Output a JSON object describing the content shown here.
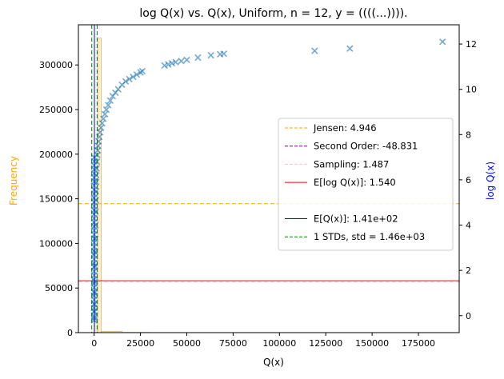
{
  "chart_data": {
    "type": "scatter",
    "title": "log Q(x) vs. Q(x), Uniform, n = 12, y = ((((...)))).",
    "xlabel": "Q(x)",
    "ylabel_left": "Frequency",
    "ylabel_right": "log Q(x)",
    "colors": {
      "frequency": "#ffa500",
      "logq": "#0000ff",
      "scatter": "#1f77b4",
      "jensen": "#ffa500",
      "second_order": "#800080",
      "sampling": "#ffc0cb",
      "e_log_q": "#ff0000",
      "e_q": "#0000ff",
      "std": "#008000"
    },
    "xlim": [
      -8500,
      197000
    ],
    "ylim_left": [
      0,
      345000
    ],
    "ylim_right": [
      -0.75,
      12.85
    ],
    "x_ticks": [
      0,
      25000,
      50000,
      75000,
      100000,
      125000,
      150000,
      175000
    ],
    "x_tick_labels": [
      "0",
      "25000",
      "50000",
      "75000",
      "100000",
      "125000",
      "150000",
      "175000"
    ],
    "y_left_ticks": [
      0,
      50000,
      100000,
      150000,
      200000,
      250000,
      300000
    ],
    "y_left_tick_labels": [
      "0",
      "50000",
      "100000",
      "150000",
      "200000",
      "250000",
      "300000"
    ],
    "y_right_ticks": [
      0,
      2,
      4,
      6,
      8,
      10,
      12
    ],
    "y_right_tick_labels": [
      "0",
      "2",
      "4",
      "6",
      "8",
      "10",
      "12"
    ],
    "histogram": [
      {
        "x0": 0,
        "x1": 1900,
        "count": 12000
      },
      {
        "x0": 1900,
        "x1": 3800,
        "count": 330000
      },
      {
        "x0": 3800,
        "x1": 15000,
        "count": 1500
      },
      {
        "x0": 15000,
        "x1": 30000,
        "count": 300
      }
    ],
    "scatter_points": [
      [
        0,
        -0.1
      ],
      [
        60,
        0.2
      ],
      [
        120,
        0.5
      ],
      [
        200,
        1.0
      ],
      [
        300,
        1.5
      ],
      [
        400,
        2.2
      ],
      [
        500,
        2.8
      ],
      [
        600,
        3.4
      ],
      [
        700,
        4.0
      ],
      [
        800,
        4.6
      ],
      [
        900,
        5.1
      ],
      [
        1000,
        5.5
      ],
      [
        1100,
        5.9
      ],
      [
        1200,
        6.2
      ],
      [
        1350,
        6.5
      ],
      [
        1500,
        6.8
      ],
      [
        1700,
        7.1
      ],
      [
        1900,
        7.3
      ],
      [
        2100,
        7.5
      ],
      [
        2400,
        7.7
      ],
      [
        2800,
        7.9
      ],
      [
        3200,
        8.1
      ],
      [
        3700,
        8.3
      ],
      [
        4300,
        8.5
      ],
      [
        5000,
        8.7
      ],
      [
        5800,
        8.9
      ],
      [
        6600,
        9.1
      ],
      [
        7600,
        9.3
      ],
      [
        8700,
        9.5
      ],
      [
        10000,
        9.7
      ],
      [
        11500,
        9.85
      ],
      [
        13000,
        10.0
      ],
      [
        15000,
        10.2
      ],
      [
        17000,
        10.35
      ],
      [
        19000,
        10.45
      ],
      [
        21000,
        10.55
      ],
      [
        23000,
        10.65
      ],
      [
        25000,
        10.75
      ],
      [
        26000,
        10.8
      ],
      [
        38000,
        11.05
      ],
      [
        40000,
        11.1
      ],
      [
        42000,
        11.15
      ],
      [
        44000,
        11.2
      ],
      [
        47000,
        11.25
      ],
      [
        50000,
        11.3
      ],
      [
        56000,
        11.4
      ],
      [
        63000,
        11.5
      ],
      [
        68000,
        11.55
      ],
      [
        70000,
        11.57
      ],
      [
        119000,
        11.7
      ],
      [
        138000,
        11.8
      ],
      [
        188000,
        12.1
      ]
    ],
    "vlines": [
      {
        "x": -1300,
        "color": "#008000",
        "dash": true
      },
      {
        "x": 141,
        "color": "#0000ff",
        "dash": false
      },
      {
        "x": 1600,
        "color": "#008000",
        "dash": true
      }
    ],
    "hlines": [
      {
        "y": 4.946,
        "color": "#ffa500",
        "dash": true
      },
      {
        "y": 1.54,
        "color": "#ff0000",
        "dash": false
      },
      {
        "y": 1.487,
        "color": "#ffc0cb",
        "dash": true
      }
    ],
    "legend_position": "right",
    "legend": [
      {
        "label": "Jensen: 4.946",
        "color": "#ffa500",
        "style": "dashed"
      },
      {
        "label": "Second Order: -48.831",
        "color": "#800080",
        "style": "dashed"
      },
      {
        "label": "Sampling: 1.487",
        "color": "#ffc0cb",
        "style": "dashed"
      },
      {
        "label": "E[log Q(x)]: 1.540",
        "color": "#ff0000",
        "style": "solid"
      },
      {
        "label": "",
        "color": "none",
        "style": "none"
      },
      {
        "label": "E[Q(x)]: 1.41e+02",
        "color": "#0000ff",
        "style": "solid"
      },
      {
        "label": "1 STDs, std = 1.46e+03",
        "color": "#008000",
        "style": "dashed"
      }
    ],
    "grid": false
  }
}
